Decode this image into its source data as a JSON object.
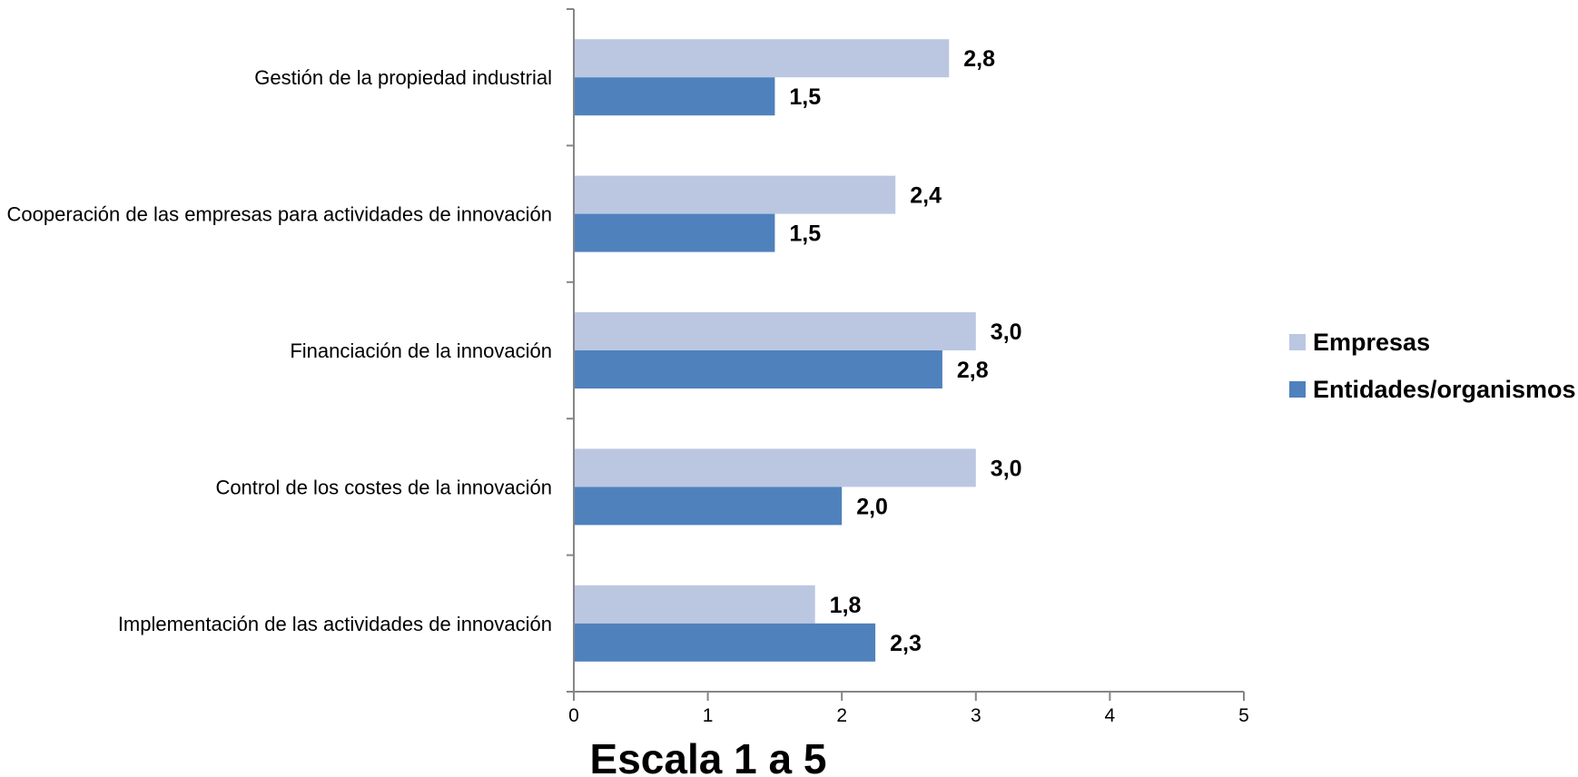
{
  "chart_data": {
    "type": "bar",
    "orientation": "horizontal",
    "categories": [
      "Gestión de la propiedad industrial",
      "Cooperación de las empresas para actividades de innovación",
      "Financiación de la innovación",
      "Control de los costes de la innovación",
      "Implementación de las actividades de innovación"
    ],
    "series": [
      {
        "name": "Empresas",
        "color": "#bbc7e1",
        "values": [
          2.8,
          2.4,
          3.0,
          3.0,
          1.8
        ],
        "labels": [
          "2,8",
          "2,4",
          "3,0",
          "3,0",
          "1,8"
        ]
      },
      {
        "name": "Entidades/organismos",
        "color": "#4f81bd",
        "values": [
          1.5,
          1.5,
          2.75,
          2.0,
          2.25
        ],
        "labels": [
          "1,5",
          "1,5",
          "2,8",
          "2,0",
          "2,3"
        ]
      }
    ],
    "xlabel": "Escala 1 a 5",
    "xlim": [
      0,
      5
    ],
    "xticks": [
      "0",
      "1",
      "2",
      "3",
      "4",
      "5"
    ],
    "grid": false,
    "legend_position": "right"
  }
}
